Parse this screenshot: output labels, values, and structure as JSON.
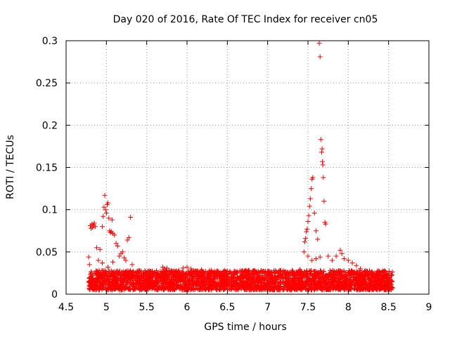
{
  "chart_data": {
    "type": "scatter",
    "title": "Day 020 of 2016, Rate Of TEC Index for receiver cn05",
    "xlabel": "GPS time / hours",
    "ylabel": "ROTI / TECUs",
    "xlim": [
      4.5,
      9
    ],
    "ylim": [
      0,
      0.3
    ],
    "xticks": [
      "4.5",
      "5",
      "5.5",
      "6",
      "6.5",
      "7",
      "7.5",
      "8",
      "8.5",
      "9"
    ],
    "yticks": [
      "0",
      "0.05",
      "0.1",
      "0.15",
      "0.2",
      "0.25",
      "0.3"
    ],
    "grid": true,
    "marker": "+",
    "color": "#ff0000",
    "series": [
      {
        "name": "ROTI",
        "points": [
          [
            4.78,
            0.044
          ],
          [
            4.79,
            0.035
          ],
          [
            4.8,
            0.081
          ],
          [
            4.81,
            0.078
          ],
          [
            4.82,
            0.083
          ],
          [
            4.83,
            0.079
          ],
          [
            4.84,
            0.082
          ],
          [
            4.85,
            0.084
          ],
          [
            4.86,
            0.08
          ],
          [
            4.88,
            0.055
          ],
          [
            4.9,
            0.04
          ],
          [
            4.92,
            0.053
          ],
          [
            4.95,
            0.08
          ],
          [
            4.96,
            0.092
          ],
          [
            4.97,
            0.103
          ],
          [
            4.98,
            0.117
          ],
          [
            4.99,
            0.1
          ],
          [
            5.0,
            0.096
          ],
          [
            5.01,
            0.106
          ],
          [
            5.02,
            0.108
          ],
          [
            5.03,
            0.09
          ],
          [
            5.04,
            0.075
          ],
          [
            5.05,
            0.073
          ],
          [
            5.06,
            0.074
          ],
          [
            5.07,
            0.088
          ],
          [
            5.08,
            0.072
          ],
          [
            5.1,
            0.07
          ],
          [
            5.12,
            0.06
          ],
          [
            5.14,
            0.057
          ],
          [
            5.16,
            0.045
          ],
          [
            5.18,
            0.048
          ],
          [
            5.2,
            0.05
          ],
          [
            5.22,
            0.043
          ],
          [
            5.24,
            0.04
          ],
          [
            5.26,
            0.064
          ],
          [
            5.28,
            0.067
          ],
          [
            5.3,
            0.091
          ],
          [
            5.32,
            0.035
          ],
          [
            4.95,
            0.037
          ],
          [
            5.02,
            0.032
          ],
          [
            5.08,
            0.038
          ],
          [
            7.45,
            0.05
          ],
          [
            7.46,
            0.062
          ],
          [
            7.47,
            0.066
          ],
          [
            7.48,
            0.074
          ],
          [
            7.49,
            0.077
          ],
          [
            7.5,
            0.086
          ],
          [
            7.51,
            0.093
          ],
          [
            7.52,
            0.104
          ],
          [
            7.53,
            0.113
          ],
          [
            7.54,
            0.125
          ],
          [
            7.55,
            0.136
          ],
          [
            7.56,
            0.138
          ],
          [
            7.58,
            0.096
          ],
          [
            7.6,
            0.075
          ],
          [
            7.62,
            0.065
          ],
          [
            7.64,
            0.297
          ],
          [
            7.65,
            0.281
          ],
          [
            7.66,
            0.183
          ],
          [
            7.67,
            0.168
          ],
          [
            7.675,
            0.172
          ],
          [
            7.68,
            0.157
          ],
          [
            7.685,
            0.153
          ],
          [
            7.69,
            0.138
          ],
          [
            7.7,
            0.11
          ],
          [
            7.71,
            0.085
          ],
          [
            7.72,
            0.083
          ],
          [
            7.5,
            0.045
          ],
          [
            7.55,
            0.04
          ],
          [
            7.6,
            0.042
          ],
          [
            7.65,
            0.044
          ],
          [
            7.75,
            0.045
          ],
          [
            7.8,
            0.04
          ],
          [
            7.85,
            0.045
          ],
          [
            7.9,
            0.052
          ],
          [
            7.92,
            0.048
          ],
          [
            7.95,
            0.042
          ],
          [
            8.0,
            0.04
          ],
          [
            8.05,
            0.037
          ],
          [
            8.1,
            0.034
          ],
          [
            8.15,
            0.03
          ],
          [
            5.7,
            0.032
          ],
          [
            5.72,
            0.03
          ],
          [
            5.75,
            0.031
          ],
          [
            5.9,
            0.028
          ],
          [
            5.95,
            0.031
          ],
          [
            6.0,
            0.032
          ],
          [
            6.05,
            0.03
          ],
          [
            6.1,
            0.027
          ],
          [
            6.18,
            0.029
          ],
          [
            6.3,
            0.028
          ],
          [
            7.0,
            0.027
          ],
          [
            7.15,
            0.028
          ],
          [
            7.4,
            0.029
          ]
        ]
      }
    ],
    "background_band": {
      "description": "dense cluster of points",
      "x_range": [
        4.78,
        8.55
      ],
      "y_range": [
        0.005,
        0.028
      ],
      "count": 3200
    }
  }
}
